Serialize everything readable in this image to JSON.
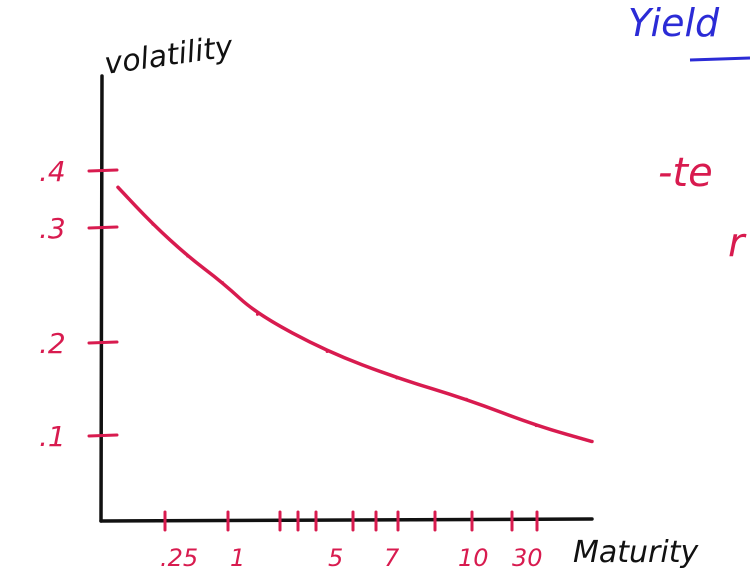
{
  "colors": {
    "axis": "#111111",
    "series": "#d81b4f",
    "ticks": "#d81b4f",
    "heading": "#2b2bd6"
  },
  "header": {
    "title_fragment": "Yield",
    "note_fragment_1": "-te",
    "note_fragment_2": "r"
  },
  "chart_data": {
    "type": "line",
    "ylabel": "volatility",
    "xlabel": "Maturity",
    "y_tick_labels": [
      ".4",
      ".3",
      ".2",
      ".1"
    ],
    "x_tick_labels": [
      ".25",
      "1",
      "5",
      "7",
      "10",
      "30"
    ],
    "x_ticks_total": 12,
    "ylim": [
      0.05,
      0.47
    ],
    "series": [
      {
        "points": [
          {
            "x": 0.0,
            "y": 0.365
          },
          {
            "x": 0.25,
            "y": 0.33
          },
          {
            "x": 0.5,
            "y": 0.3
          },
          {
            "x": 0.75,
            "y": 0.275
          },
          {
            "x": 1.0,
            "y": 0.245
          },
          {
            "x": 1.5,
            "y": 0.21
          },
          {
            "x": 2.0,
            "y": 0.185
          },
          {
            "x": 2.5,
            "y": 0.165
          },
          {
            "x": 3.0,
            "y": 0.14
          },
          {
            "x": 3.4,
            "y": 0.125
          }
        ]
      }
    ]
  }
}
